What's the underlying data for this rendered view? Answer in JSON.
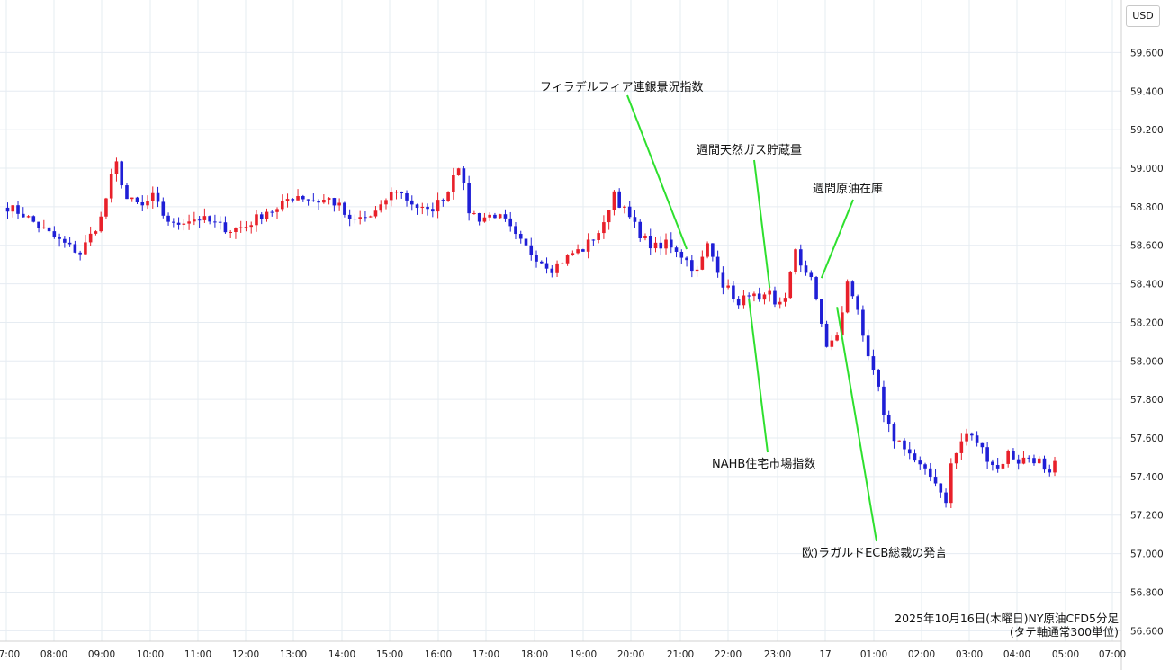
{
  "currency_label": "USD",
  "chart_data": {
    "type": "candlestick",
    "title": "2025年10月16日(木曜日)NY原油CFD5分足",
    "subtitle": "(タテ軸通常300単位)",
    "ylabel": "USD",
    "ylim": [
      56.55,
      59.85
    ],
    "y_ticks": [
      "59.600",
      "59.400",
      "59.200",
      "59.000",
      "58.800",
      "58.600",
      "58.400",
      "58.200",
      "58.000",
      "57.800",
      "57.600",
      "57.400",
      "57.200",
      "57.000",
      "56.800",
      "56.600"
    ],
    "x_ticks": [
      "07:00",
      "08:00",
      "09:00",
      "10:00",
      "11:00",
      "12:00",
      "13:00",
      "14:00",
      "15:00",
      "16:00",
      "17:00",
      "18:00",
      "19:00",
      "20:00",
      "21:00",
      "22:00",
      "23:00",
      "17",
      "01:00",
      "02:00",
      "03:00",
      "04:00",
      "05:00",
      "07:00"
    ],
    "grid": true,
    "colors": {
      "up": "#e8202a",
      "down": "#1f1fd6",
      "annotation_line": "#2ee02e",
      "grid": "#e6ecf2"
    },
    "close_anchors": [
      [
        0,
        58.8
      ],
      [
        3,
        58.76
      ],
      [
        6,
        58.7
      ],
      [
        9,
        58.64
      ],
      [
        12,
        58.59
      ],
      [
        14,
        58.56
      ],
      [
        16,
        58.65
      ],
      [
        18,
        58.74
      ],
      [
        20,
        58.95
      ],
      [
        21,
        59.02
      ],
      [
        23,
        58.84
      ],
      [
        26,
        58.8
      ],
      [
        28,
        58.85
      ],
      [
        30,
        58.76
      ],
      [
        32,
        58.7
      ],
      [
        34,
        58.73
      ],
      [
        37,
        58.74
      ],
      [
        40,
        58.71
      ],
      [
        43,
        58.68
      ],
      [
        46,
        58.7
      ],
      [
        48,
        58.74
      ],
      [
        50,
        58.78
      ],
      [
        52,
        58.78
      ],
      [
        54,
        58.84
      ],
      [
        56,
        58.86
      ],
      [
        58,
        58.84
      ],
      [
        60,
        58.83
      ],
      [
        62,
        58.84
      ],
      [
        64,
        58.8
      ],
      [
        66,
        58.72
      ],
      [
        68,
        58.74
      ],
      [
        70,
        58.75
      ],
      [
        72,
        58.79
      ],
      [
        73,
        58.84
      ],
      [
        75,
        58.89
      ],
      [
        77,
        58.84
      ],
      [
        79,
        58.8
      ],
      [
        81,
        58.77
      ],
      [
        83,
        58.82
      ],
      [
        85,
        58.88
      ],
      [
        86,
        58.98
      ],
      [
        87,
        59.02
      ],
      [
        89,
        58.78
      ],
      [
        91,
        58.74
      ],
      [
        94,
        58.76
      ],
      [
        96,
        58.72
      ],
      [
        98,
        58.64
      ],
      [
        101,
        58.56
      ],
      [
        103,
        58.52
      ],
      [
        105,
        58.48
      ],
      [
        107,
        58.52
      ],
      [
        109,
        58.56
      ],
      [
        111,
        58.58
      ],
      [
        113,
        58.64
      ],
      [
        115,
        58.7
      ],
      [
        116,
        58.8
      ],
      [
        117,
        58.88
      ],
      [
        118,
        58.82
      ],
      [
        120,
        58.74
      ],
      [
        122,
        58.66
      ],
      [
        124,
        58.6
      ],
      [
        126,
        58.58
      ],
      [
        127,
        58.62
      ],
      [
        129,
        58.58
      ],
      [
        131,
        58.52
      ],
      [
        133,
        58.46
      ],
      [
        135,
        58.6
      ],
      [
        137,
        58.48
      ],
      [
        138,
        58.4
      ],
      [
        140,
        58.34
      ],
      [
        141,
        58.28
      ],
      [
        143,
        58.36
      ],
      [
        145,
        58.3
      ],
      [
        147,
        58.34
      ],
      [
        148,
        58.28
      ],
      [
        150,
        58.34
      ],
      [
        152,
        58.56
      ],
      [
        153,
        58.5
      ],
      [
        155,
        58.44
      ],
      [
        156,
        58.3
      ],
      [
        158,
        58.08
      ],
      [
        160,
        58.12
      ],
      [
        162,
        58.4
      ],
      [
        164,
        58.28
      ],
      [
        165,
        58.14
      ],
      [
        166,
        58.0
      ],
      [
        168,
        57.86
      ],
      [
        169,
        57.7
      ],
      [
        171,
        57.6
      ],
      [
        173,
        57.56
      ],
      [
        175,
        57.48
      ],
      [
        177,
        57.42
      ],
      [
        179,
        57.38
      ],
      [
        180,
        57.32
      ],
      [
        181,
        57.28
      ],
      [
        182,
        57.46
      ],
      [
        184,
        57.58
      ],
      [
        185,
        57.62
      ],
      [
        187,
        57.58
      ],
      [
        189,
        57.5
      ],
      [
        191,
        57.44
      ],
      [
        193,
        57.52
      ],
      [
        195,
        57.48
      ],
      [
        197,
        57.5
      ],
      [
        199,
        57.48
      ],
      [
        200,
        57.42
      ],
      [
        201,
        57.4
      ],
      [
        202,
        57.46
      ]
    ],
    "annotations": [
      {
        "label": "フィラデルフィア連銀景況指数",
        "time_index": 131,
        "price": 58.58
      },
      {
        "label": "週間天然ガス貯蔵量",
        "time_index": 147,
        "price": 58.38
      },
      {
        "label": "週間原油在庫",
        "time_index": 157,
        "price": 58.43
      },
      {
        "label": "NAHB住宅市場指数",
        "time_index": 143,
        "price": 58.32
      },
      {
        "label": "欧)ラガルドECB総裁の発言",
        "time_index": 160,
        "price": 58.28
      }
    ]
  }
}
